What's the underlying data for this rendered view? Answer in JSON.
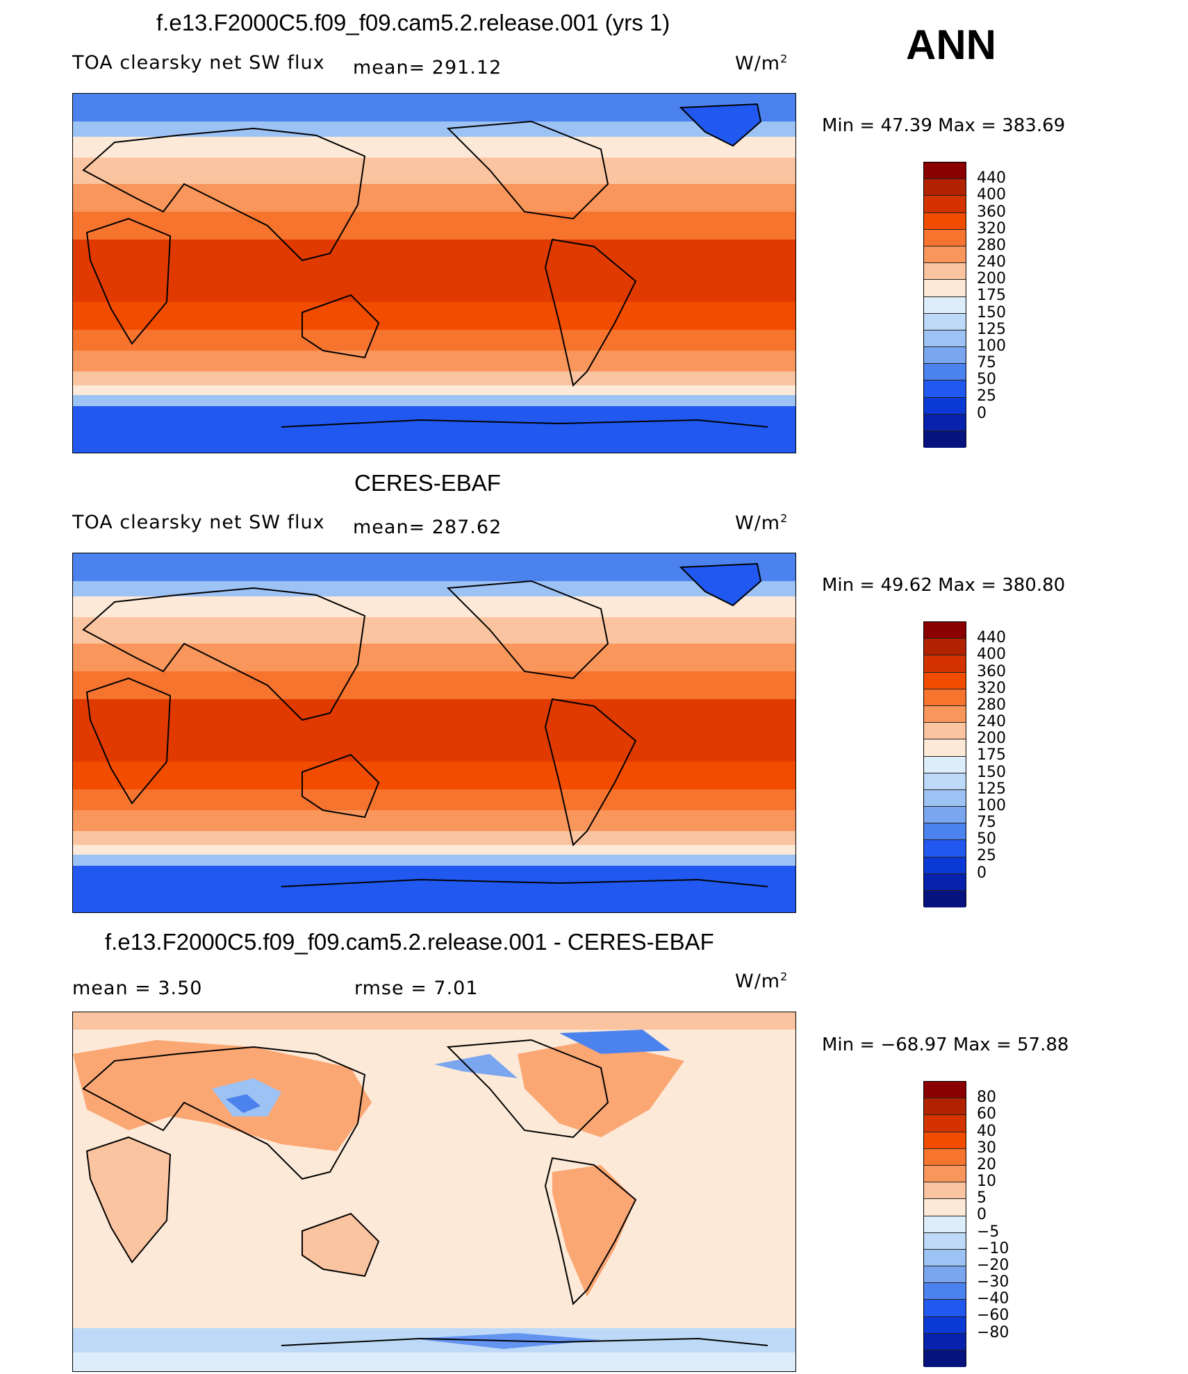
{
  "season": "ANN",
  "panels": [
    {
      "title": "f.e13.F2000C5.f09_f09.cam5.2.release.001 (yrs 1)",
      "variable": "TOA clearsky net SW flux",
      "stat": "mean= 291.12",
      "units_base": "W/m",
      "units_exp": "2",
      "minmax": "Min =   47.39 Max = 383.69",
      "colorbar": {
        "colors": [
          "#8b0000",
          "#b22200",
          "#d43300",
          "#f14c00",
          "#f7742f",
          "#f9965b",
          "#fbc4a0",
          "#fde9d7",
          "#ddeefa",
          "#bdd9f7",
          "#9dc2f4",
          "#7aa6f0",
          "#4c82ee",
          "#2058f0",
          "#0b39d6",
          "#0822ae",
          "#06137e"
        ],
        "labels": [
          "440",
          "400",
          "360",
          "320",
          "280",
          "240",
          "200",
          "175",
          "150",
          "125",
          "100",
          "75",
          "50",
          "25",
          "0"
        ]
      }
    },
    {
      "title": "CERES-EBAF",
      "variable": "TOA clearsky net SW flux",
      "stat": "mean= 287.62",
      "units_base": "W/m",
      "units_exp": "2",
      "minmax": "Min =   49.62 Max = 380.80",
      "colorbar": {
        "colors": [
          "#8b0000",
          "#b22200",
          "#d43300",
          "#f14c00",
          "#f7742f",
          "#f9965b",
          "#fbc4a0",
          "#fde9d7",
          "#ddeefa",
          "#bdd9f7",
          "#9dc2f4",
          "#7aa6f0",
          "#4c82ee",
          "#2058f0",
          "#0b39d6",
          "#0822ae",
          "#06137e"
        ],
        "labels": [
          "440",
          "400",
          "360",
          "320",
          "280",
          "240",
          "200",
          "175",
          "150",
          "125",
          "100",
          "75",
          "50",
          "25",
          "0"
        ]
      }
    },
    {
      "title": "f.e13.F2000C5.f09_f09.cam5.2.release.001 - CERES-EBAF",
      "mean": "mean =    3.50",
      "rmse": "rmse =    7.01",
      "units_base": "W/m",
      "units_exp": "2",
      "minmax": "Min = −68.97 Max =   57.88",
      "colorbar": {
        "colors": [
          "#8b0000",
          "#b22200",
          "#d43300",
          "#f14c00",
          "#f7742f",
          "#f9965b",
          "#fbc4a0",
          "#fde9d7",
          "#ddeefa",
          "#bdd9f7",
          "#9dc2f4",
          "#7aa6f0",
          "#4c82ee",
          "#2058f0",
          "#0b39d6",
          "#0822ae",
          "#06137e"
        ],
        "labels": [
          "80",
          "60",
          "40",
          "30",
          "20",
          "10",
          "5",
          "0",
          "−5",
          "−10",
          "−20",
          "−30",
          "−40",
          "−60",
          "−80"
        ]
      }
    }
  ]
}
